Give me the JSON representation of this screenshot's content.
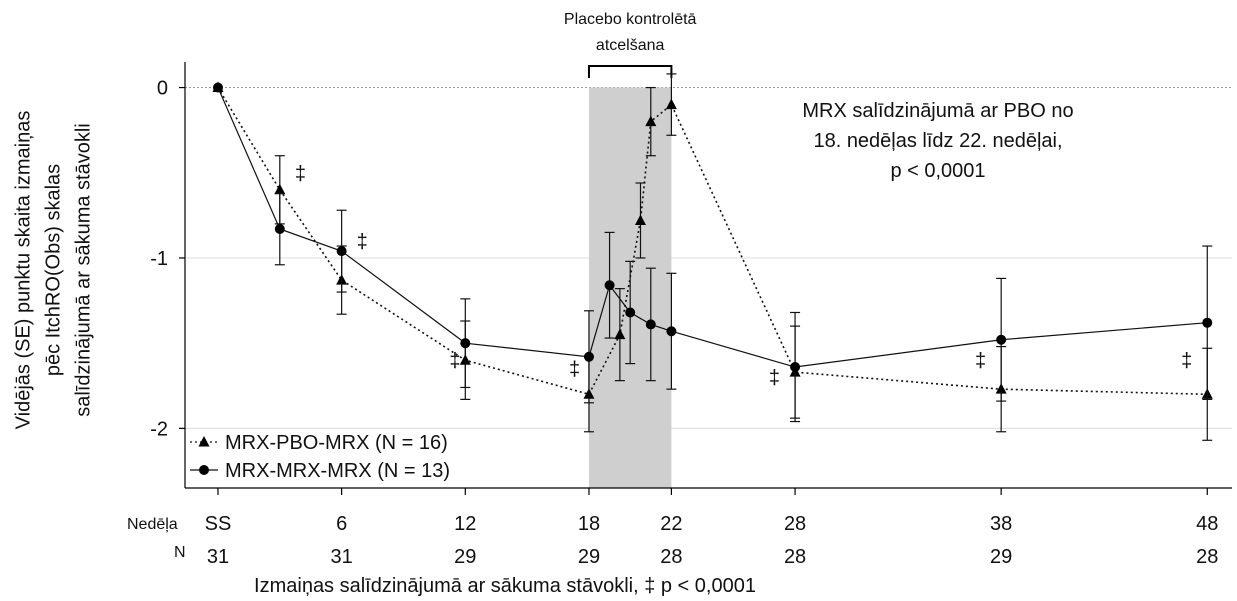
{
  "chart_data": {
    "type": "line",
    "ylabel_lines": [
      "Vidējās (SE) punktu skaita izmaiņas",
      "pēc ItchRO(Obs) skalas",
      "salīdzinājumā ar sākuma stāvokli"
    ],
    "xlabel": "Izmaiņas salīdzinājumā ar sākuma stāvokli, ‡ p < 0,0001",
    "ylim": [
      -2.35,
      0.15
    ],
    "yticks": [
      0,
      -1,
      -2
    ],
    "ytick_labels": [
      "0",
      "-1",
      "-2"
    ],
    "xlim": [
      -1.6,
      49.2
    ],
    "xticks": [
      0,
      6,
      12,
      18,
      22,
      28,
      38,
      48
    ],
    "xtick_labels": [
      "SS",
      "6",
      "12",
      "18",
      "22",
      "28",
      "38",
      "48"
    ],
    "week_row_label": "Nedēļa",
    "n_row_label": "N",
    "n_values": [
      "31",
      "31",
      "29",
      "29",
      "28",
      "28",
      "29",
      "28"
    ],
    "shaded_region": {
      "x": [
        18,
        22
      ],
      "label_lines": [
        "Placebo kontrolētā",
        "atcelšana"
      ]
    },
    "annotation_lines": [
      "MRX salīdzinājumā ar PBO no",
      "18. nedēļas līdz 22. nedēļai,",
      "p < 0,0001"
    ],
    "significance_marker": "‡",
    "significance_marks": [
      {
        "x": 4,
        "y": -0.5
      },
      {
        "x": 7,
        "y": -0.9
      },
      {
        "x": 11.5,
        "y": -1.6
      },
      {
        "x": 17.3,
        "y": -1.65
      },
      {
        "x": 27,
        "y": -1.7
      },
      {
        "x": 37,
        "y": -1.6
      },
      {
        "x": 47,
        "y": -1.6
      }
    ],
    "series": [
      {
        "name": "MRX-PBO-MRX (N = 16)",
        "marker": "triangle",
        "line_style": "dotted",
        "x": [
          0,
          3,
          6,
          12,
          18,
          19.5,
          20.5,
          21,
          22,
          28,
          38,
          48
        ],
        "y": [
          0,
          -0.6,
          -1.13,
          -1.6,
          -1.8,
          -1.45,
          -0.78,
          -0.2,
          -0.1,
          -1.67,
          -1.77,
          -1.8
        ],
        "err": [
          0,
          0.2,
          0.2,
          0.23,
          0.22,
          0.27,
          0.22,
          0.2,
          0.18,
          0.27,
          0.25,
          0.27
        ]
      },
      {
        "name": "MRX-MRX-MRX (N = 13)",
        "marker": "circle",
        "line_style": "solid",
        "x": [
          0,
          3,
          6,
          12,
          18,
          19,
          20,
          21,
          22,
          28,
          38,
          48
        ],
        "y": [
          0,
          -0.83,
          -0.96,
          -1.5,
          -1.58,
          -1.16,
          -1.32,
          -1.39,
          -1.43,
          -1.64,
          -1.48,
          -1.38
        ],
        "err": [
          0,
          0.21,
          0.24,
          0.26,
          0.27,
          0.31,
          0.3,
          0.33,
          0.34,
          0.32,
          0.36,
          0.45
        ]
      }
    ],
    "grid": "horizontal",
    "legend_position": "bottom-left"
  }
}
